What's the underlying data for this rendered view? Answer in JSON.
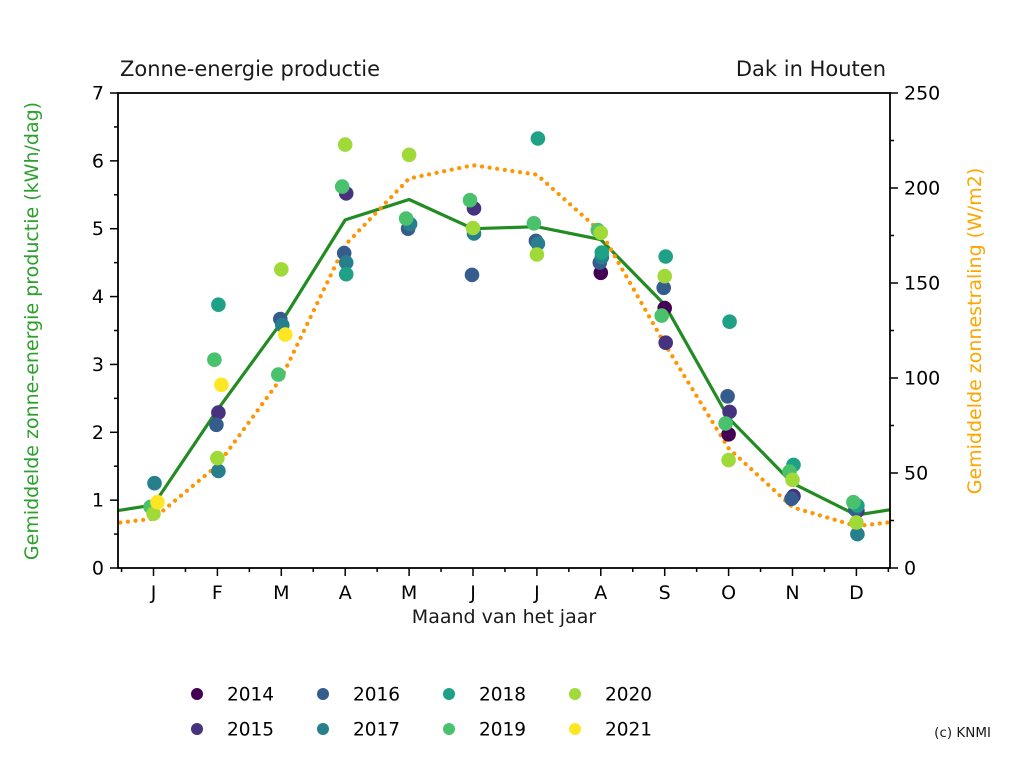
{
  "credit": "(c) KNMI",
  "chart_data": {
    "type": "scatter",
    "title": "Zonne-energie productie",
    "title_right": "Dak in Houten",
    "xlabel": "Maand van het jaar",
    "ylabel_left": "Gemiddelde zonne-energie productie (kWh/dag)",
    "ylabel_right": "Gemiddelde zonnestraling (W/m2)",
    "x_categories": [
      "J",
      "F",
      "M",
      "A",
      "M",
      "J",
      "J",
      "A",
      "S",
      "O",
      "N",
      "D"
    ],
    "left_axis": {
      "label_color": "#2ca02c",
      "min": 0,
      "max": 7,
      "ticks": [
        0,
        1,
        2,
        3,
        4,
        5,
        6,
        7
      ],
      "minor_step": 0.5
    },
    "right_axis": {
      "label_color": "#ffa500",
      "min": 0,
      "max": 250,
      "ticks": [
        0,
        50,
        100,
        150,
        200,
        250
      ],
      "minor_step": 25
    },
    "lines": [
      {
        "name": "mean-production",
        "axis": "left",
        "style": "solid",
        "color": "#228b22",
        "wrap": true,
        "values": [
          0.93,
          2.33,
          3.62,
          5.13,
          5.43,
          5.0,
          5.03,
          4.84,
          3.88,
          2.21,
          1.25,
          0.78
        ]
      },
      {
        "name": "mean-radiation",
        "axis": "right",
        "style": "dotted",
        "color": "#ff9500",
        "wrap": true,
        "values": [
          26,
          54,
          100,
          170,
          205,
          212,
          207,
          177,
          118,
          63,
          32,
          22
        ]
      }
    ],
    "series": [
      {
        "name": "2014",
        "color": "#440154",
        "jitter": 0,
        "points": [
          [
            7,
            4.35
          ],
          [
            8,
            3.83
          ],
          [
            9,
            1.97
          ]
        ]
      },
      {
        "name": "2015",
        "color": "#46327e",
        "jitter": 1,
        "points": [
          [
            1,
            2.29
          ],
          [
            3,
            5.52
          ],
          [
            5,
            5.3
          ],
          [
            8,
            3.32
          ],
          [
            9,
            2.3
          ],
          [
            10,
            1.06
          ],
          [
            11,
            0.84
          ]
        ]
      },
      {
        "name": "2016",
        "color": "#365c8d",
        "jitter": -1,
        "points": [
          [
            1,
            2.11
          ],
          [
            2,
            3.67
          ],
          [
            3,
            4.64
          ],
          [
            4,
            5.0
          ],
          [
            5,
            4.32
          ],
          [
            6,
            4.82
          ],
          [
            7,
            4.5
          ],
          [
            8,
            4.13
          ],
          [
            9,
            2.53
          ],
          [
            10,
            1.02
          ],
          [
            11,
            0.86
          ]
        ]
      },
      {
        "name": "2017",
        "color": "#277f8e",
        "jitter": 1,
        "points": [
          [
            0,
            1.25
          ],
          [
            1,
            1.43
          ],
          [
            2,
            3.58
          ],
          [
            3,
            4.5
          ],
          [
            4,
            5.07
          ],
          [
            5,
            4.93
          ],
          [
            6,
            4.78
          ],
          [
            7,
            4.58
          ],
          [
            11,
            0.5
          ]
        ]
      },
      {
        "name": "2018",
        "color": "#1fa187",
        "jitter": 1,
        "points": [
          [
            1,
            3.88
          ],
          [
            3,
            4.33
          ],
          [
            6,
            6.33
          ],
          [
            7,
            4.65
          ],
          [
            8,
            4.59
          ],
          [
            9,
            3.63
          ],
          [
            10,
            1.52
          ],
          [
            11,
            0.92
          ]
        ]
      },
      {
        "name": "2019",
        "color": "#4ac16d",
        "jitter": -3,
        "points": [
          [
            0,
            0.9
          ],
          [
            1,
            3.07
          ],
          [
            2,
            2.85
          ],
          [
            3,
            5.62
          ],
          [
            4,
            5.15
          ],
          [
            5,
            5.42
          ],
          [
            6,
            5.08
          ],
          [
            7,
            4.98
          ],
          [
            8,
            3.72
          ],
          [
            9,
            2.13
          ],
          [
            10,
            1.42
          ],
          [
            11,
            0.97
          ]
        ]
      },
      {
        "name": "2020",
        "color": "#a0da39",
        "jitter": 0,
        "points": [
          [
            0,
            0.8
          ],
          [
            1,
            1.62
          ],
          [
            2,
            4.4
          ],
          [
            3,
            6.24
          ],
          [
            4,
            6.09
          ],
          [
            5,
            5.01
          ],
          [
            6,
            4.62
          ],
          [
            7,
            4.94
          ],
          [
            8,
            4.3
          ],
          [
            9,
            1.59
          ],
          [
            10,
            1.3
          ],
          [
            11,
            0.67
          ]
        ]
      },
      {
        "name": "2021",
        "color": "#fde725",
        "jitter": 4,
        "points": [
          [
            0,
            0.97
          ],
          [
            1,
            2.7
          ],
          [
            2,
            3.44
          ]
        ]
      }
    ],
    "legend_columns": 4
  }
}
